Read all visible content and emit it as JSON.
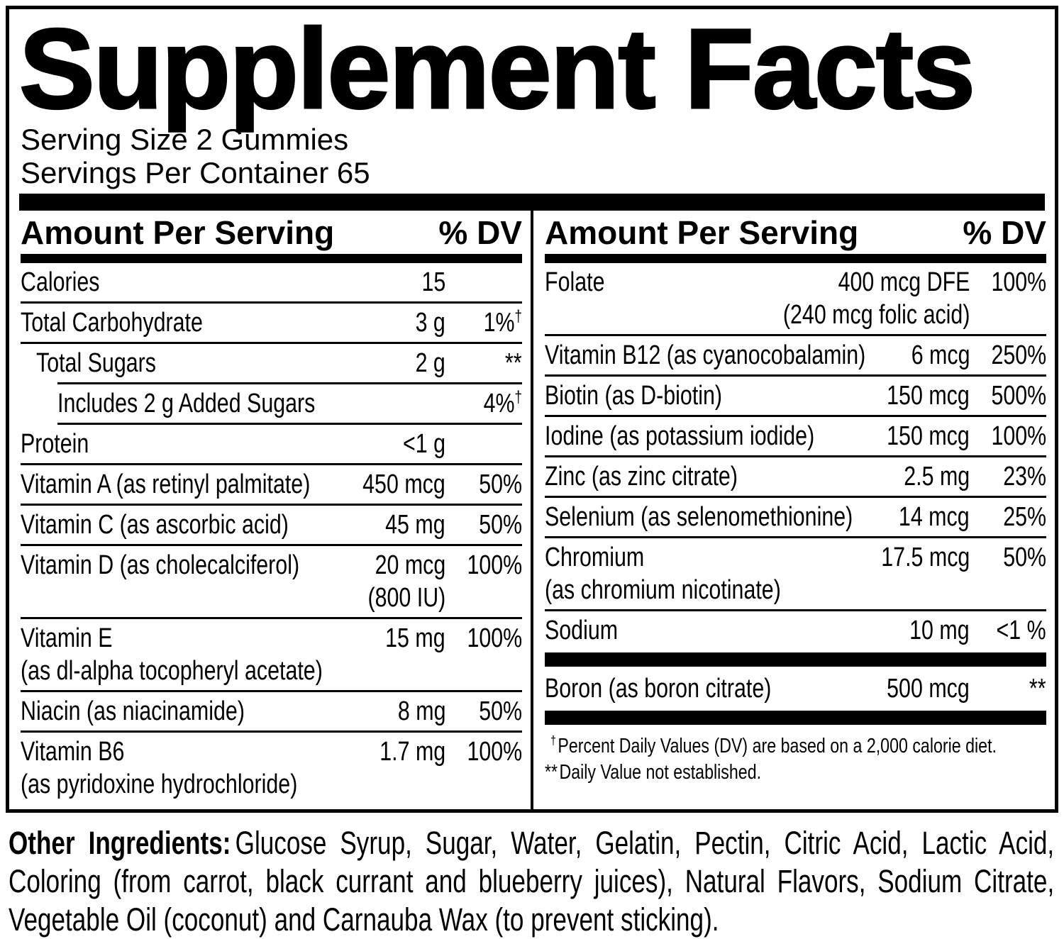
{
  "panel": {
    "title": "Supplement Facts",
    "serving": {
      "size_line": "Serving Size 2 Gummies",
      "per_container_line": "Servings Per Container 65"
    },
    "columns_header": {
      "amount_label": "Amount Per Serving",
      "dv_label": "% DV"
    }
  },
  "table": {
    "left": {
      "rows": [
        {
          "label": "Calories",
          "amount": "15"
        },
        {
          "label": "Total Carbohydrate",
          "amount": "3 g",
          "dv": "1%",
          "dv_sup": "†"
        },
        {
          "label": "Total Sugars",
          "amount": "2 g",
          "dv": "**"
        },
        {
          "label": "Includes 2 g Added Sugars",
          "dv": "4%",
          "dv_sup": "†"
        },
        {
          "label": "Protein",
          "amount": "<1 g"
        },
        {
          "label": "Vitamin A (as retinyl palmitate)",
          "amount": "450 mcg",
          "dv": "50%"
        },
        {
          "label": "Vitamin C (as ascorbic acid)",
          "amount": "45 mg",
          "dv": "50%"
        },
        {
          "label": "Vitamin D (as cholecalciferol)",
          "amount": "20 mcg",
          "amount2": "(800 IU)",
          "dv": "100%"
        },
        {
          "label": "Vitamin E",
          "label2": "(as dl-alpha tocopheryl acetate)",
          "amount": "15 mg",
          "dv": "100%"
        },
        {
          "label": "Niacin (as niacinamide)",
          "amount": "8 mg",
          "dv": "50%"
        },
        {
          "label": "Vitamin B6",
          "label2": "(as pyridoxine hydrochloride)",
          "amount": "1.7 mg",
          "dv": "100%"
        }
      ]
    },
    "right": {
      "rows": [
        {
          "label": "Folate",
          "amount": "400 mcg DFE",
          "amount2": "(240 mcg folic acid)",
          "dv": "100%"
        },
        {
          "label": "Vitamin B12 (as cyanocobalamin)",
          "amount": "6 mcg",
          "dv": "250%"
        },
        {
          "label": "Biotin (as D-biotin)",
          "amount": "150 mcg",
          "dv": "500%"
        },
        {
          "label": "Iodine (as potassium iodide)",
          "amount": "150 mcg",
          "dv": "100%"
        },
        {
          "label": "Zinc (as zinc citrate)",
          "amount": "2.5 mg",
          "dv": "23%"
        },
        {
          "label": "Selenium (as selenomethionine)",
          "amount": "14 mcg",
          "dv": "25%"
        },
        {
          "label": "Chromium",
          "label2": "(as chromium nicotinate)",
          "amount": "17.5 mcg",
          "dv": "50%"
        },
        {
          "label": "Sodium",
          "amount": "10 mg",
          "dv": "<1 %"
        },
        {
          "label": "Boron (as boron citrate)",
          "amount": "500 mcg",
          "dv": "**"
        }
      ]
    }
  },
  "footnotes": {
    "dagger_symbol": "†",
    "dagger_text": "Percent Daily Values (DV) are based on a 2,000 calorie diet.",
    "asterisk_symbol": "**",
    "asterisk_text": "Daily Value not established."
  },
  "other_ingredients": {
    "label": "Other Ingredients:",
    "text": "Glucose Syrup, Sugar, Water, Gelatin, Pectin, Citric Acid, Lactic Acid, Coloring (from carrot, black currant and blueberry juices), Natural Flavors, Sodium Citrate, Vegetable Oil (coconut) and Carnauba Wax (to prevent sticking)."
  },
  "colors": {
    "ink": "#000000",
    "background": "#ffffff"
  }
}
